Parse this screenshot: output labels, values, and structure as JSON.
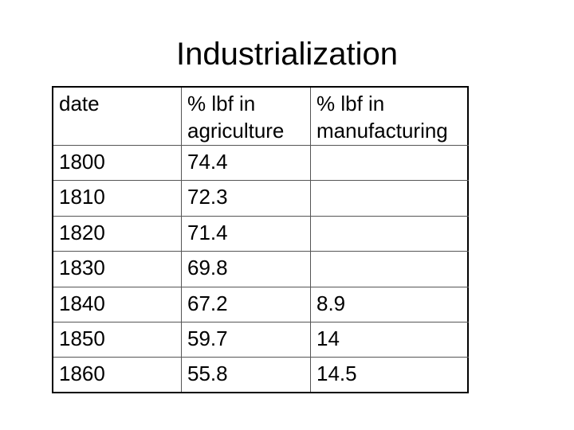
{
  "title": "Industrialization",
  "table": {
    "header": [
      "date",
      "% lbf in agriculture",
      "% lbf in manufacturing"
    ],
    "rows": [
      [
        1800,
        74.4,
        null
      ],
      [
        1810,
        72.3,
        null
      ],
      [
        1820,
        71.4,
        null
      ],
      [
        1830,
        69.8,
        null
      ],
      [
        1840,
        67.2,
        8.9
      ],
      [
        1850,
        59.7,
        14
      ],
      [
        1860,
        55.8,
        14.5
      ]
    ]
  }
}
